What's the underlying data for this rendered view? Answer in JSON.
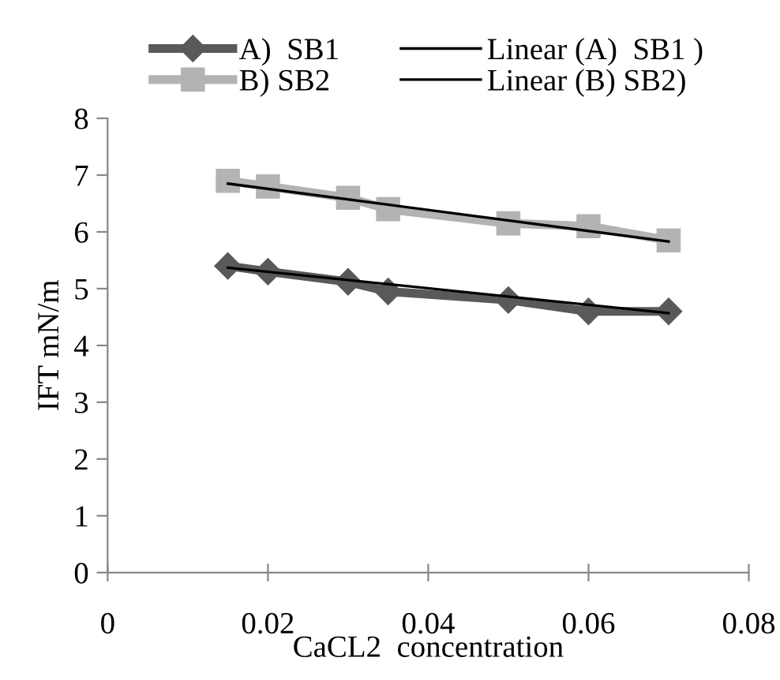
{
  "chart_data": {
    "type": "line",
    "xlabel": "CaCL2  concentration",
    "ylabel": "IFT mN/m",
    "xlim": [
      0,
      0.08
    ],
    "xticks": [
      0,
      0.02,
      0.04,
      0.06,
      0.08
    ],
    "ylim": [
      0,
      8
    ],
    "yticks": [
      0,
      1,
      2,
      3,
      4,
      5,
      6,
      7,
      8
    ],
    "grid": false,
    "legend": "top",
    "line_style": "solid",
    "series": [
      {
        "name": "A)  SB1",
        "color": "#595959",
        "marker": "diamond",
        "x": [
          0.015,
          0.02,
          0.03,
          0.035,
          0.05,
          0.06,
          0.07
        ],
        "values": [
          5.4,
          5.3,
          5.12,
          4.95,
          4.8,
          4.6,
          4.6
        ]
      },
      {
        "name": "B) SB2",
        "color": "#b3b3b3",
        "marker": "square",
        "x": [
          0.015,
          0.02,
          0.03,
          0.035,
          0.05,
          0.06,
          0.07
        ],
        "values": [
          6.9,
          6.8,
          6.6,
          6.4,
          6.15,
          6.1,
          5.85
        ]
      },
      {
        "name": "Linear (A)  SB1 )",
        "color": "#000000",
        "marker": "none",
        "x": [
          0.015,
          0.07
        ],
        "values": [
          5.37,
          4.57
        ]
      },
      {
        "name": "Linear (B) SB2)",
        "color": "#000000",
        "marker": "none",
        "x": [
          0.015,
          0.07
        ],
        "values": [
          6.85,
          5.83
        ]
      }
    ]
  }
}
